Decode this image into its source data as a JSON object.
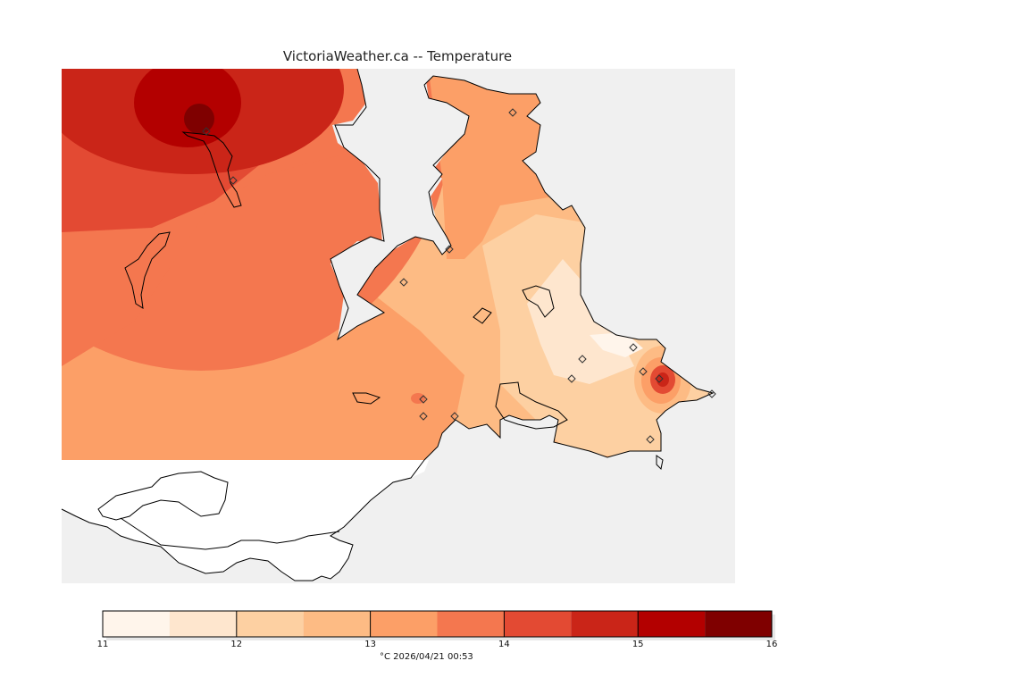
{
  "title": "VictoriaWeather.ca -- Temperature",
  "legend": {
    "unit_and_time": "°C  2026/04/21 00:53",
    "ticks": [
      "11",
      "12",
      "13",
      "14",
      "15",
      "16"
    ],
    "colors": [
      "#fff5eb",
      "#fee6ce",
      "#fdd0a2",
      "#fdbb84",
      "#fc9f67",
      "#f4774f",
      "#e34a33",
      "#ca2518",
      "#b30000",
      "#7f0000"
    ]
  },
  "chart_data": {
    "type": "heatmap",
    "title": "VictoriaWeather.ca -- Temperature",
    "variable": "Temperature",
    "unit": "°C",
    "timestamp": "2026/04/21 00:53",
    "colorbar": {
      "min": 11,
      "max": 16,
      "step": 0.5,
      "tick_labels": [
        "11",
        "12",
        "13",
        "14",
        "15",
        "16"
      ]
    },
    "levels": [
      11,
      11.5,
      12,
      12.5,
      13,
      13.5,
      14,
      14.5,
      15,
      15.5,
      16
    ]
  }
}
